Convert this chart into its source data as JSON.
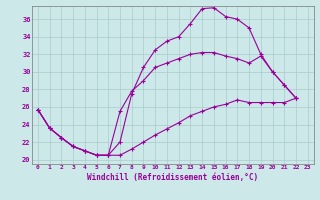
{
  "xlabel": "Windchill (Refroidissement éolien,°C)",
  "bg_color": "#cce8e8",
  "grid_color": "#aacccc",
  "line_color": "#990099",
  "xlim_min": -0.5,
  "xlim_max": 23.5,
  "ylim_min": 19.5,
  "ylim_max": 37.5,
  "xticks": [
    0,
    1,
    2,
    3,
    4,
    5,
    6,
    7,
    8,
    9,
    10,
    11,
    12,
    13,
    14,
    15,
    16,
    17,
    18,
    19,
    20,
    21,
    22,
    23
  ],
  "yticks": [
    20,
    22,
    24,
    26,
    28,
    30,
    32,
    34,
    36
  ],
  "curve_upper_x": [
    0,
    1,
    2,
    3,
    4,
    5,
    6,
    7,
    8,
    9,
    10,
    11,
    12,
    13,
    14,
    15,
    16,
    17,
    18,
    19,
    20,
    21,
    22
  ],
  "curve_upper_y": [
    25.7,
    23.6,
    22.5,
    21.5,
    21.0,
    20.5,
    20.5,
    22.0,
    27.5,
    30.5,
    32.5,
    33.5,
    34.0,
    35.5,
    37.2,
    37.3,
    36.3,
    36.0,
    35.0,
    32.0,
    30.0,
    28.5,
    27.0
  ],
  "curve_mid_x": [
    0,
    1,
    2,
    3,
    4,
    5,
    6,
    7,
    8,
    9,
    10,
    11,
    12,
    13,
    14,
    15,
    16,
    17,
    18,
    19,
    20,
    21,
    22
  ],
  "curve_mid_y": [
    25.7,
    23.6,
    22.5,
    21.5,
    21.0,
    20.5,
    20.5,
    25.5,
    27.8,
    29.0,
    30.5,
    31.0,
    31.5,
    32.0,
    32.2,
    32.2,
    31.8,
    31.5,
    31.0,
    31.8,
    30.0,
    28.5,
    27.0
  ],
  "curve_low_x": [
    0,
    1,
    2,
    3,
    4,
    5,
    6,
    7,
    8,
    9,
    10,
    11,
    12,
    13,
    14,
    15,
    16,
    17,
    18,
    19,
    20,
    21,
    22
  ],
  "curve_low_y": [
    25.7,
    23.6,
    22.5,
    21.5,
    21.0,
    20.5,
    20.5,
    20.5,
    21.2,
    22.0,
    22.8,
    23.5,
    24.2,
    25.0,
    25.5,
    26.0,
    26.3,
    26.8,
    26.5,
    26.5,
    26.5,
    26.5,
    27.0
  ]
}
